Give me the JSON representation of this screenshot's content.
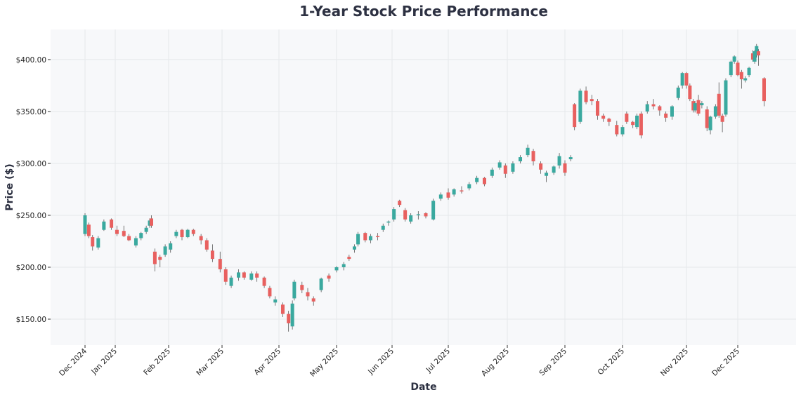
{
  "chart_data": {
    "type": "candlestick",
    "title": "1-Year Stock Price Performance",
    "xlabel": "Date",
    "ylabel": "Price ($)",
    "ylim": [
      125,
      429
    ],
    "xlim": [
      "2024-11-27",
      "2026-01-01"
    ],
    "grid": true,
    "y_ticks": [
      150,
      200,
      250,
      300,
      350,
      400
    ],
    "y_tick_labels": [
      "$150.00",
      "$200.00",
      "$250.00",
      "$300.00",
      "$350.00",
      "$400.00"
    ],
    "x_ticks": [
      {
        "date": "2024-12-16",
        "label": "Dec 2024"
      },
      {
        "date": "2025-01-01",
        "label": "Jan 2025"
      },
      {
        "date": "2025-02-01",
        "label": "Feb 2025"
      },
      {
        "date": "2025-03-01",
        "label": "Mar 2025"
      },
      {
        "date": "2025-04-01",
        "label": "Apr 2025"
      },
      {
        "date": "2025-05-01",
        "label": "May 2025"
      },
      {
        "date": "2025-06-01",
        "label": "Jun 2025"
      },
      {
        "date": "2025-07-01",
        "label": "Jul 2025"
      },
      {
        "date": "2025-08-01",
        "label": "Aug 2025"
      },
      {
        "date": "2025-09-01",
        "label": "Sep 2025"
      },
      {
        "date": "2025-10-01",
        "label": "Oct 2025"
      },
      {
        "date": "2025-11-01",
        "label": "Nov 2025"
      },
      {
        "date": "2025-12-01",
        "label": "Dec 2025"
      }
    ],
    "colors": {
      "up": "#3aa99f",
      "down": "#e8605f",
      "plot_bg": "#f7f8fa",
      "grid": "#e6e8eb",
      "wick": "#555555"
    },
    "ohlc_fields": [
      "date",
      "open",
      "high",
      "low",
      "close"
    ],
    "candles": [
      [
        "2024-12-16",
        232,
        252,
        230,
        250
      ],
      [
        "2024-12-18",
        241,
        243,
        228,
        230
      ],
      [
        "2024-12-20",
        229,
        231,
        216,
        220
      ],
      [
        "2024-12-23",
        219,
        230,
        217,
        228
      ],
      [
        "2024-12-26",
        236,
        246,
        235,
        244
      ],
      [
        "2024-12-30",
        246,
        247,
        236,
        238
      ],
      [
        "2025-01-02",
        236,
        240,
        230,
        232
      ],
      [
        "2025-01-06",
        235,
        240,
        229,
        230
      ],
      [
        "2025-01-09",
        230,
        232,
        225,
        226
      ],
      [
        "2025-01-13",
        221,
        230,
        219,
        228
      ],
      [
        "2025-01-16",
        228,
        234,
        226,
        233
      ],
      [
        "2025-01-19",
        234,
        240,
        232,
        238
      ],
      [
        "2025-01-21",
        240,
        247,
        238,
        245
      ],
      [
        "2025-01-22",
        247,
        250,
        238,
        240
      ],
      [
        "2025-01-24",
        215,
        218,
        196,
        203
      ],
      [
        "2025-01-27",
        210,
        212,
        200,
        207
      ],
      [
        "2025-01-30",
        212,
        222,
        210,
        220
      ],
      [
        "2025-02-02",
        217,
        225,
        214,
        223
      ],
      [
        "2025-02-05",
        230,
        236,
        228,
        234
      ],
      [
        "2025-02-08",
        236,
        237,
        226,
        229
      ],
      [
        "2025-02-11",
        229,
        237,
        228,
        236
      ],
      [
        "2025-02-14",
        236,
        237,
        230,
        232
      ],
      [
        "2025-02-18",
        230,
        232,
        222,
        226
      ],
      [
        "2025-02-21",
        226,
        228,
        215,
        217
      ],
      [
        "2025-02-24",
        216,
        222,
        205,
        208
      ],
      [
        "2025-02-28",
        208,
        215,
        195,
        198
      ],
      [
        "2025-03-03",
        198,
        200,
        183,
        186
      ],
      [
        "2025-03-06",
        182,
        192,
        180,
        190
      ],
      [
        "2025-03-10",
        190,
        198,
        187,
        195
      ],
      [
        "2025-03-13",
        195,
        196,
        188,
        190
      ],
      [
        "2025-03-17",
        188,
        196,
        187,
        194
      ],
      [
        "2025-03-20",
        194,
        196,
        186,
        190
      ],
      [
        "2025-03-24",
        190,
        191,
        180,
        182
      ],
      [
        "2025-03-27",
        180,
        182,
        170,
        172
      ],
      [
        "2025-03-30",
        166,
        172,
        163,
        169
      ],
      [
        "2025-04-03",
        164,
        166,
        152,
        155
      ],
      [
        "2025-04-06",
        155,
        158,
        138,
        146
      ],
      [
        "2025-04-08",
        143,
        168,
        140,
        165
      ],
      [
        "2025-04-09",
        170,
        188,
        168,
        186
      ],
      [
        "2025-04-13",
        183,
        186,
        175,
        178
      ],
      [
        "2025-04-16",
        176,
        180,
        168,
        172
      ],
      [
        "2025-04-19",
        170,
        172,
        163,
        167
      ],
      [
        "2025-04-23",
        178,
        190,
        176,
        189
      ],
      [
        "2025-04-27",
        192,
        194,
        186,
        189
      ],
      [
        "2025-05-01",
        197,
        201,
        195,
        200
      ],
      [
        "2025-05-05",
        200,
        205,
        197,
        203
      ],
      [
        "2025-05-08",
        210,
        212,
        206,
        208
      ],
      [
        "2025-05-11",
        217,
        222,
        214,
        220
      ],
      [
        "2025-05-13",
        222,
        234,
        220,
        232
      ],
      [
        "2025-05-17",
        233,
        234,
        224,
        226
      ],
      [
        "2025-05-20",
        226,
        232,
        223,
        230
      ],
      [
        "2025-05-24",
        230,
        233,
        226,
        229
      ],
      [
        "2025-05-27",
        236,
        242,
        234,
        240
      ],
      [
        "2025-05-30",
        243,
        245,
        240,
        244
      ],
      [
        "2025-06-02",
        246,
        258,
        244,
        256
      ],
      [
        "2025-06-05",
        264,
        265,
        258,
        260
      ],
      [
        "2025-06-08",
        255,
        257,
        244,
        246
      ],
      [
        "2025-06-11",
        244,
        252,
        242,
        250
      ],
      [
        "2025-06-15",
        250,
        254,
        246,
        251
      ],
      [
        "2025-06-19",
        252,
        253,
        247,
        249
      ],
      [
        "2025-06-23",
        246,
        266,
        245,
        264
      ],
      [
        "2025-06-27",
        266,
        272,
        264,
        270
      ],
      [
        "2025-07-01",
        272,
        276,
        265,
        267
      ],
      [
        "2025-07-04",
        270,
        276,
        268,
        275
      ],
      [
        "2025-07-08",
        274,
        278,
        271,
        273
      ],
      [
        "2025-07-12",
        276,
        282,
        274,
        280
      ],
      [
        "2025-07-16",
        282,
        288,
        280,
        286
      ],
      [
        "2025-07-20",
        286,
        287,
        278,
        280
      ],
      [
        "2025-07-24",
        288,
        296,
        286,
        294
      ],
      [
        "2025-07-28",
        296,
        303,
        294,
        301
      ],
      [
        "2025-07-31",
        298,
        300,
        286,
        290
      ],
      [
        "2025-08-04",
        292,
        302,
        290,
        300
      ],
      [
        "2025-08-08",
        302,
        308,
        300,
        306
      ],
      [
        "2025-08-12",
        308,
        318,
        306,
        315
      ],
      [
        "2025-08-15",
        312,
        314,
        298,
        302
      ],
      [
        "2025-08-19",
        300,
        302,
        290,
        294
      ],
      [
        "2025-08-22",
        288,
        293,
        282,
        291
      ],
      [
        "2025-08-26",
        291,
        298,
        289,
        297
      ],
      [
        "2025-08-29",
        298,
        310,
        295,
        307
      ],
      [
        "2025-09-01",
        300,
        303,
        288,
        291
      ],
      [
        "2025-09-04",
        304,
        308,
        302,
        306
      ],
      [
        "2025-09-06",
        357,
        358,
        332,
        335
      ],
      [
        "2025-09-09",
        340,
        372,
        338,
        370
      ],
      [
        "2025-09-12",
        370,
        374,
        357,
        359
      ],
      [
        "2025-09-15",
        362,
        366,
        356,
        360
      ],
      [
        "2025-09-18",
        360,
        362,
        342,
        346
      ],
      [
        "2025-09-21",
        346,
        348,
        340,
        343
      ],
      [
        "2025-09-24",
        343,
        344,
        336,
        340
      ],
      [
        "2025-09-28",
        337,
        341,
        326,
        328
      ],
      [
        "2025-10-01",
        328,
        337,
        326,
        335
      ],
      [
        "2025-10-03",
        348,
        350,
        338,
        340
      ],
      [
        "2025-10-06",
        340,
        341,
        334,
        337
      ],
      [
        "2025-10-08",
        335,
        348,
        333,
        346
      ],
      [
        "2025-10-10",
        348,
        350,
        324,
        327
      ],
      [
        "2025-10-13",
        350,
        360,
        348,
        357
      ],
      [
        "2025-10-16",
        357,
        362,
        352,
        355
      ],
      [
        "2025-10-19",
        355,
        356,
        346,
        351
      ],
      [
        "2025-10-22",
        348,
        350,
        340,
        344
      ],
      [
        "2025-10-25",
        345,
        356,
        342,
        355
      ],
      [
        "2025-10-28",
        363,
        375,
        361,
        373
      ],
      [
        "2025-10-30",
        375,
        388,
        372,
        387
      ],
      [
        "2025-11-01",
        387,
        388,
        372,
        375
      ],
      [
        "2025-11-03",
        375,
        377,
        360,
        362
      ],
      [
        "2025-11-05",
        360,
        362,
        349,
        351
      ],
      [
        "2025-11-06",
        351,
        360,
        349,
        358
      ],
      [
        "2025-11-08",
        361,
        366,
        346,
        348
      ],
      [
        "2025-11-10",
        356,
        360,
        353,
        358
      ],
      [
        "2025-11-13",
        352,
        355,
        331,
        334
      ],
      [
        "2025-11-15",
        332,
        346,
        328,
        345
      ],
      [
        "2025-11-18",
        345,
        357,
        343,
        355
      ],
      [
        "2025-11-20",
        367,
        378,
        344,
        346
      ],
      [
        "2025-11-22",
        346,
        348,
        330,
        340
      ],
      [
        "2025-11-24",
        347,
        382,
        345,
        380
      ],
      [
        "2025-11-27",
        385,
        399,
        383,
        398
      ],
      [
        "2025-11-29",
        398,
        404,
        396,
        403
      ],
      [
        "2025-12-01",
        397,
        399,
        384,
        385
      ],
      [
        "2025-12-03",
        388,
        390,
        372,
        381
      ],
      [
        "2025-12-05",
        380,
        384,
        378,
        382
      ],
      [
        "2025-12-07",
        385,
        393,
        383,
        392
      ],
      [
        "2025-12-09",
        406,
        409,
        398,
        400
      ],
      [
        "2025-12-10",
        398,
        409,
        396,
        408
      ],
      [
        "2025-12-11",
        404,
        415,
        402,
        413
      ],
      [
        "2025-12-12",
        408,
        410,
        394,
        404
      ],
      [
        "2025-12-15",
        382,
        383,
        355,
        360
      ]
    ]
  }
}
